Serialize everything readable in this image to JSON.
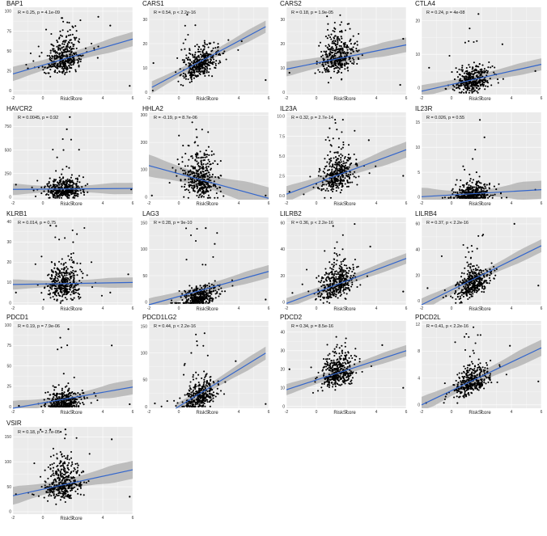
{
  "chart_data": [
    {
      "type": "scatter",
      "title": "BAP1",
      "stat": "R = 0.25, p = 4.1e-09",
      "xlabel": "RiskScore",
      "xticks": [
        -2,
        0,
        2,
        4,
        6
      ],
      "yticks": [
        0,
        25,
        50,
        75,
        100
      ],
      "ylim": [
        -5,
        105
      ],
      "xlim": [
        -2,
        6
      ],
      "fit": {
        "x": [
          -2,
          6
        ],
        "y": [
          21,
          65
        ]
      },
      "band": [
        6,
        9
      ],
      "cloud": {
        "mean": 40,
        "sd": 14,
        "max": 95,
        "center": 1.4,
        "spread": 0.55
      },
      "outliers": [
        [
          3.7,
          93
        ],
        [
          4.5,
          82
        ],
        [
          5.8,
          6
        ],
        [
          -1,
          28
        ]
      ]
    },
    {
      "type": "scatter",
      "title": "CARS1",
      "stat": "R = 0.54, p < 2.2e-16",
      "xlabel": "RiskScore",
      "xticks": [
        -2,
        0,
        2,
        4,
        6
      ],
      "yticks": [
        0,
        10,
        20,
        30
      ],
      "ylim": [
        -1,
        35
      ],
      "xlim": [
        -2,
        6
      ],
      "fit": {
        "x": [
          -1.8,
          5.8
        ],
        "y": [
          2,
          27
        ]
      },
      "band": [
        1.5,
        2.5
      ],
      "cloud": {
        "mean": 11,
        "sd": 4,
        "max": 32,
        "center": 1.4,
        "spread": 0.55
      },
      "outliers": [
        [
          -1.7,
          12
        ],
        [
          5.8,
          5
        ],
        [
          4.2,
          21
        ]
      ]
    },
    {
      "type": "scatter",
      "title": "CARS2",
      "stat": "R = 0.18, p = 1.9e-05",
      "xlabel": "RiskScore",
      "xticks": [
        -2,
        0,
        2,
        4,
        6
      ],
      "yticks": [
        0,
        10,
        20,
        30
      ],
      "ylim": [
        -1,
        35
      ],
      "xlim": [
        -2,
        6
      ],
      "fit": {
        "x": [
          -2,
          6
        ],
        "y": [
          9.5,
          19.5
        ]
      },
      "band": [
        2,
        3
      ],
      "cloud": {
        "mean": 14,
        "sd": 5,
        "max": 32,
        "center": 1.4,
        "spread": 0.55
      },
      "outliers": [
        [
          5.6,
          3
        ],
        [
          5.8,
          22
        ],
        [
          -1.8,
          8
        ]
      ]
    },
    {
      "type": "scatter",
      "title": "CTLA4",
      "stat": "R = 0.24, p = 4e-08",
      "xlabel": "RiskScore",
      "xticks": [
        -2,
        0,
        2,
        4,
        6
      ],
      "yticks": [
        0,
        10,
        20
      ],
      "ylim": [
        -2,
        24
      ],
      "xlim": [
        -2,
        6
      ],
      "fit": {
        "x": [
          -2,
          6
        ],
        "y": [
          -1,
          7
        ]
      },
      "band": [
        1.2,
        1.8
      ],
      "cloud": {
        "mean": 2,
        "sd": 2.5,
        "max": 19,
        "center": 1.4,
        "spread": 0.55
      },
      "outliers": [
        [
          -1.5,
          6
        ],
        [
          3.4,
          13
        ],
        [
          5.6,
          5
        ],
        [
          1.8,
          22
        ]
      ]
    },
    {
      "type": "scatter",
      "title": "HAVCR2",
      "stat": "R = 0.0045, p = 0.92",
      "xlabel": "RiskScore",
      "xticks": [
        -2,
        0,
        2,
        4,
        6
      ],
      "yticks": [
        0,
        250,
        500,
        750
      ],
      "ylim": [
        -30,
        900
      ],
      "xlim": [
        -2,
        6
      ],
      "fit": {
        "x": [
          -2,
          6
        ],
        "y": [
          80,
          90
        ]
      },
      "band": [
        30,
        60
      ],
      "cloud": {
        "mean": 70,
        "sd": 70,
        "max": 850,
        "center": 1.4,
        "spread": 0.55
      },
      "outliers": [
        [
          1.8,
          850
        ],
        [
          1.6,
          720
        ],
        [
          -1.8,
          130
        ],
        [
          5.9,
          80
        ]
      ]
    },
    {
      "type": "scatter",
      "title": "HHLA2",
      "stat": "R = -0.19, p = 8.7e-06",
      "xlabel": "RiskScore",
      "xticks": [
        -2,
        0,
        2,
        4,
        6
      ],
      "yticks": [
        0,
        100,
        200,
        300
      ],
      "ylim": [
        -10,
        310
      ],
      "xlim": [
        -2,
        6
      ],
      "fit": {
        "x": [
          -2,
          6
        ],
        "y": [
          115,
          -5
        ]
      },
      "band": [
        25,
        40
      ],
      "cloud": {
        "mean": 60,
        "sd": 55,
        "max": 290,
        "center": 1.4,
        "spread": 0.55
      },
      "outliers": [
        [
          -1.8,
          5
        ],
        [
          5.8,
          5
        ],
        [
          0,
          120
        ]
      ]
    },
    {
      "type": "scatter",
      "title": "IL23A",
      "stat": "R = 0.32, p = 2.7e-14",
      "xlabel": "RiskScore",
      "xticks": [
        -2,
        0,
        2,
        4,
        6
      ],
      "yticks": [
        0,
        2.5,
        5.0,
        7.5,
        10.0
      ],
      "ylim": [
        -0.5,
        10.5
      ],
      "xlim": [
        -2,
        6
      ],
      "fit": {
        "x": [
          -2,
          6
        ],
        "y": [
          0.2,
          5.8
        ]
      },
      "band": [
        0.6,
        1.0
      ],
      "cloud": {
        "mean": 2.5,
        "sd": 1.4,
        "max": 10,
        "center": 1.4,
        "spread": 0.55
      },
      "outliers": [
        [
          -1.8,
          0.5
        ],
        [
          5.8,
          2.5
        ],
        [
          3.5,
          7
        ]
      ]
    },
    {
      "type": "scatter",
      "title": "IL23R",
      "stat": "R = 0.026, p = 0.55",
      "xlabel": "RiskScore",
      "xticks": [
        -2,
        0,
        2,
        4,
        6
      ],
      "yticks": [
        0,
        5,
        10,
        15
      ],
      "ylim": [
        -0.5,
        17
      ],
      "xlim": [
        -2,
        6
      ],
      "fit": {
        "x": [
          -2,
          6
        ],
        "y": [
          0.1,
          1.5
        ]
      },
      "band": [
        0.6,
        1.8
      ],
      "cloud": {
        "mean": 0.5,
        "sd": 1.2,
        "max": 12,
        "center": 1.4,
        "spread": 0.55
      },
      "outliers": [
        [
          1.9,
          15.5
        ],
        [
          2.2,
          12
        ],
        [
          5.6,
          1.5
        ]
      ]
    },
    {
      "type": "scatter",
      "title": "KLRB1",
      "stat": "R = 0.014, p = 0.75",
      "xlabel": "RiskScore",
      "xticks": [
        -2,
        0,
        2,
        4,
        6
      ],
      "yticks": [
        0,
        10,
        20,
        30,
        40
      ],
      "ylim": [
        -1,
        42
      ],
      "xlim": [
        -2,
        6
      ],
      "fit": {
        "x": [
          -2,
          6
        ],
        "y": [
          9,
          10
        ]
      },
      "band": [
        1.5,
        2.5
      ],
      "cloud": {
        "mean": 9,
        "sd": 6,
        "max": 40,
        "center": 1.4,
        "spread": 0.55
      },
      "outliers": [
        [
          -1.8,
          5
        ],
        [
          5.7,
          14
        ],
        [
          4.5,
          5
        ],
        [
          0.5,
          38
        ]
      ]
    },
    {
      "type": "scatter",
      "title": "LAG3",
      "stat": "R = 0.28, p = 9e-10",
      "xlabel": "RiskScore",
      "xticks": [
        -2,
        0,
        2,
        4,
        6
      ],
      "yticks": [
        0,
        50,
        100,
        150
      ],
      "ylim": [
        -5,
        160
      ],
      "xlim": [
        -2,
        6
      ],
      "fit": {
        "x": [
          -2,
          6
        ],
        "y": [
          -5,
          58
        ]
      },
      "band": [
        8,
        12
      ],
      "cloud": {
        "mean": 8,
        "sd": 12,
        "max": 140,
        "center": 1.4,
        "spread": 0.55
      },
      "outliers": [
        [
          1.8,
          140
        ],
        [
          2.4,
          110
        ],
        [
          5.8,
          5
        ]
      ]
    },
    {
      "type": "scatter",
      "title": "LILRB2",
      "stat": "R = 0.36, p < 2.2e-16",
      "xlabel": "RiskScore",
      "xticks": [
        -2,
        0,
        2,
        4,
        6
      ],
      "yticks": [
        0,
        20,
        40,
        60
      ],
      "ylim": [
        -2,
        64
      ],
      "xlim": [
        -2,
        6
      ],
      "fit": {
        "x": [
          -2,
          6
        ],
        "y": [
          -1,
          33
        ]
      },
      "band": [
        3,
        4
      ],
      "cloud": {
        "mean": 14,
        "sd": 8,
        "max": 60,
        "center": 1.4,
        "spread": 0.55
      },
      "outliers": [
        [
          -1.6,
          7
        ],
        [
          5.8,
          8
        ],
        [
          3.6,
          42
        ]
      ]
    },
    {
      "type": "scatter",
      "title": "LILRB4",
      "stat": "R = 0.37, p < 2.2e-16",
      "xlabel": "RiskScore",
      "xticks": [
        -2,
        0,
        2,
        4,
        6
      ],
      "yticks": [
        0,
        20,
        40,
        60
      ],
      "ylim": [
        -3,
        65
      ],
      "xlim": [
        -2,
        6
      ],
      "fit": {
        "x": [
          -2,
          6
        ],
        "y": [
          -3,
          43
        ]
      },
      "band": [
        3,
        5
      ],
      "cloud": {
        "mean": 12,
        "sd": 7,
        "max": 55,
        "center": 1.4,
        "spread": 0.55
      },
      "outliers": [
        [
          -1.6,
          10
        ],
        [
          5.8,
          12
        ],
        [
          4.2,
          60
        ]
      ]
    },
    {
      "type": "scatter",
      "title": "PDCD1",
      "stat": "R = 0.19, p = 7.9e-06",
      "xlabel": "RiskScore",
      "xticks": [
        -2,
        0,
        2,
        4,
        6
      ],
      "yticks": [
        0,
        25,
        50,
        75,
        100
      ],
      "ylim": [
        -2,
        105
      ],
      "xlim": [
        -2,
        6
      ],
      "fit": {
        "x": [
          -2,
          6
        ],
        "y": [
          -2,
          24
        ]
      },
      "band": [
        4,
        9
      ],
      "cloud": {
        "mean": 4,
        "sd": 9,
        "max": 95,
        "center": 1.4,
        "spread": 0.55
      },
      "outliers": [
        [
          1.7,
          95
        ],
        [
          4.6,
          75
        ],
        [
          5.8,
          3
        ],
        [
          -1.6,
          1
        ]
      ]
    },
    {
      "type": "scatter",
      "title": "PDCD1LG2",
      "stat": "R = 0.44, p < 2.2e-16",
      "xlabel": "RiskScore",
      "xticks": [
        -2,
        0,
        2,
        4,
        6
      ],
      "yticks": [
        0,
        50,
        100,
        150
      ],
      "ylim": [
        -3,
        160
      ],
      "xlim": [
        -2,
        6
      ],
      "fit": {
        "x": [
          -0.2,
          5.8
        ],
        "y": [
          -3,
          100
        ]
      },
      "band": [
        7,
        12
      ],
      "cloud": {
        "mean": 18,
        "sd": 18,
        "max": 150,
        "center": 1.4,
        "spread": 0.55
      },
      "outliers": [
        [
          -1.6,
          6
        ],
        [
          5.8,
          5
        ],
        [
          3.8,
          85
        ]
      ]
    },
    {
      "type": "scatter",
      "title": "PDCD2",
      "stat": "R = 0.34, p = 8.5e-16",
      "xlabel": "RiskScore",
      "xticks": [
        -2,
        0,
        2,
        4,
        6
      ],
      "yticks": [
        0,
        10,
        20,
        30,
        40
      ],
      "ylim": [
        -1,
        46
      ],
      "xlim": [
        -2,
        6
      ],
      "fit": {
        "x": [
          -2,
          6
        ],
        "y": [
          9,
          30
        ]
      },
      "band": [
        2,
        3
      ],
      "cloud": {
        "mean": 18,
        "sd": 6,
        "max": 43,
        "center": 1.4,
        "spread": 0.55
      },
      "outliers": [
        [
          -1.8,
          20
        ],
        [
          5.8,
          10
        ],
        [
          4.4,
          33
        ]
      ]
    },
    {
      "type": "scatter",
      "title": "PDCD2L",
      "stat": "R = 0.41, p < 2.2e-16",
      "xlabel": "RiskScore",
      "xticks": [
        -2,
        0,
        2,
        4,
        6
      ],
      "yticks": [
        0,
        4,
        8,
        12
      ],
      "ylim": [
        -0.5,
        12.5
      ],
      "xlim": [
        -2,
        6
      ],
      "fit": {
        "x": [
          -2,
          6
        ],
        "y": [
          0,
          8.5
        ]
      },
      "band": [
        0.7,
        1.2
      ],
      "cloud": {
        "mean": 3.3,
        "sd": 1.3,
        "max": 12,
        "center": 1.4,
        "spread": 0.55
      },
      "outliers": [
        [
          -1.7,
          0.3
        ],
        [
          5.8,
          3.5
        ],
        [
          3.9,
          8.8
        ]
      ]
    },
    {
      "type": "scatter",
      "title": "VSIR",
      "stat": "R = 0.18, p = 2.7e-05",
      "xlabel": "RiskScore",
      "xticks": [
        -2,
        0,
        2,
        4,
        6
      ],
      "yticks": [
        0,
        50,
        100,
        150
      ],
      "ylim": [
        -5,
        170
      ],
      "xlim": [
        -2,
        6
      ],
      "fit": {
        "x": [
          -2,
          6
        ],
        "y": [
          32,
          84
        ]
      },
      "band": [
        10,
        18
      ],
      "cloud": {
        "mean": 55,
        "sd": 25,
        "max": 165,
        "center": 1.4,
        "spread": 0.55
      },
      "outliers": [
        [
          -1.8,
          35
        ],
        [
          5.8,
          30
        ],
        [
          4.6,
          145
        ],
        [
          1.5,
          165
        ]
      ]
    }
  ],
  "colors": {
    "panel_bg": "#ebebeb",
    "grid": "#ffffff",
    "point": "#000000",
    "fit": "#3366cc",
    "band": "#a9a9a9"
  }
}
